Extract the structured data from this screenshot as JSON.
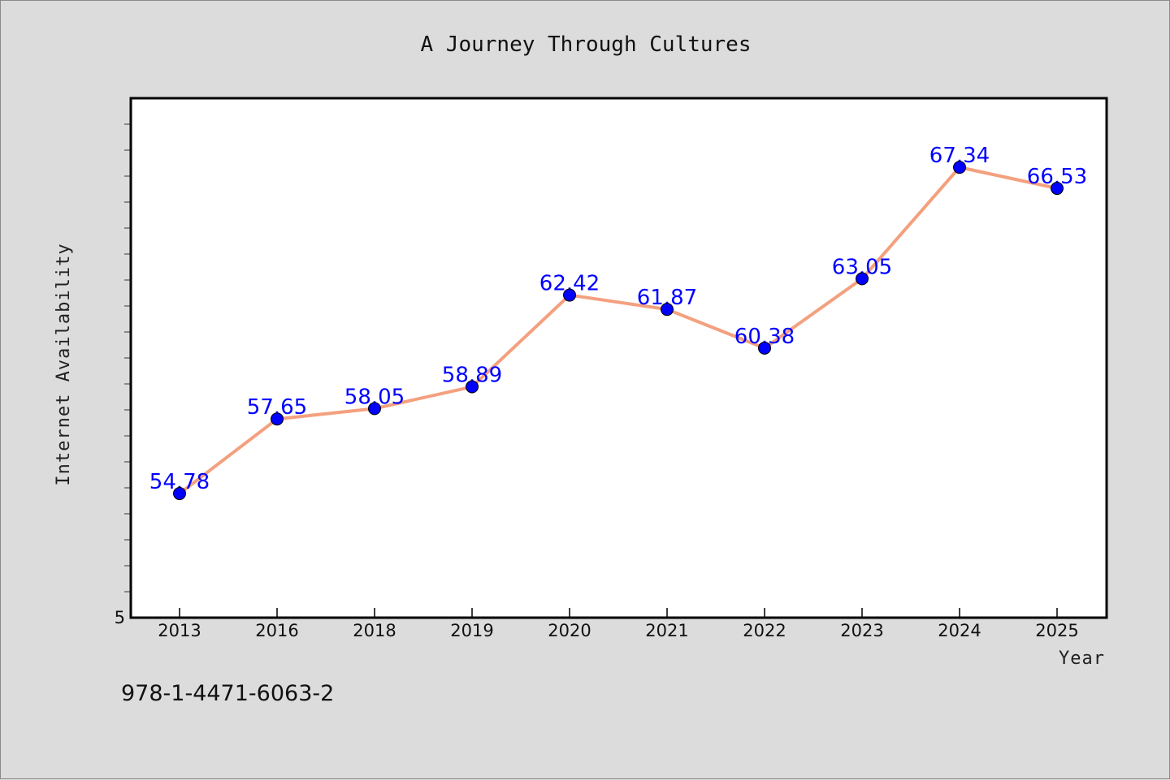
{
  "chart_data": {
    "type": "line",
    "title": "A Journey Through Cultures",
    "xlabel": "Year",
    "ylabel": "Internet Availability",
    "categories": [
      "2013",
      "2016",
      "2018",
      "2019",
      "2020",
      "2021",
      "2022",
      "2023",
      "2024",
      "2025"
    ],
    "series": [
      {
        "values": [
          54.78,
          57.65,
          58.05,
          58.89,
          62.42,
          61.87,
          60.38,
          63.05,
          67.34,
          66.53
        ],
        "labels": [
          "54.78",
          "57.65",
          "58.05",
          "58.89",
          "62.42",
          "61.87",
          "60.38",
          "63.05",
          "67.34",
          "66.53"
        ]
      }
    ],
    "ylim": [
      50,
      70
    ],
    "ytick_label": "5",
    "grid": false,
    "legend": "none",
    "colors": {
      "line": "#f4a07e",
      "marker": "#0000ff",
      "data_label": "#0000ff",
      "plot_background": "#ffffff",
      "page_background": "#dcdcdc"
    }
  },
  "footer": {
    "isbn": "978-1-4471-6063-2"
  }
}
